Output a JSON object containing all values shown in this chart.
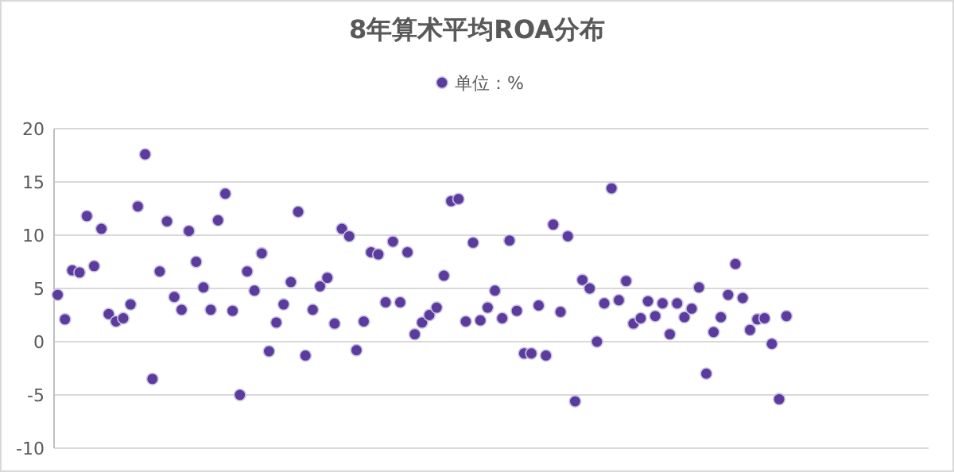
{
  "chart_data": {
    "type": "scatter",
    "title": "8年算术平均ROA分布",
    "legend": "top",
    "marker": "circle",
    "grid": "y",
    "ylim": [
      -10,
      20
    ],
    "yticks": [
      -10,
      -5,
      0,
      5,
      10,
      15,
      20
    ],
    "categories": [
      null,
      null,
      null,
      null,
      null,
      null,
      null,
      null,
      null,
      null,
      null,
      null,
      null,
      null,
      null,
      null,
      null,
      null,
      null,
      null,
      null,
      null,
      null,
      null,
      null,
      null,
      null,
      null,
      null,
      null,
      null,
      null,
      null,
      null,
      null,
      null,
      null,
      null,
      null,
      null,
      null,
      null,
      null,
      null,
      null,
      null,
      null,
      null,
      null,
      null,
      null,
      null,
      null,
      null,
      null,
      null,
      null,
      null,
      null,
      null,
      null,
      null,
      null,
      null,
      null,
      null,
      null,
      null,
      null,
      null,
      null,
      null,
      null,
      null,
      null,
      null,
      null,
      null,
      null,
      null,
      null,
      null,
      null,
      null,
      null,
      null,
      null,
      null,
      null,
      null,
      null,
      null,
      null,
      null,
      null,
      null,
      null,
      null,
      null,
      null,
      null,
      null,
      null,
      null,
      null,
      null,
      null,
      null,
      null,
      null,
      null,
      null,
      null,
      null,
      null,
      null,
      null,
      null,
      null,
      null
    ],
    "series": [
      {
        "name": "单位：%",
        "color": "#5b3c9c",
        "values": [
          4.4,
          2.1,
          6.7,
          6.5,
          11.8,
          7.1,
          10.6,
          2.6,
          1.9,
          2.2,
          3.5,
          12.7,
          17.6,
          -3.5,
          6.6,
          11.3,
          4.2,
          3.0,
          10.4,
          7.5,
          5.1,
          3.0,
          11.4,
          13.9,
          2.9,
          -5.0,
          6.6,
          4.8,
          8.3,
          -0.9,
          1.8,
          3.5,
          5.6,
          12.2,
          -1.3,
          3.0,
          5.2,
          6.0,
          1.7,
          10.6,
          9.9,
          -0.8,
          1.9,
          8.4,
          8.2,
          3.7,
          9.4,
          3.7,
          8.4,
          0.7,
          1.8,
          2.5,
          3.2,
          6.2,
          13.2,
          13.4,
          1.9,
          9.3,
          2.0,
          3.2,
          4.8,
          2.2,
          9.5,
          2.9,
          -1.1,
          -1.1,
          3.4,
          -1.3,
          11.0,
          2.8,
          9.9,
          -5.6,
          5.8,
          5.0,
          0.0,
          3.6,
          14.4,
          3.9,
          5.7,
          1.7,
          2.2,
          3.8,
          2.4,
          3.6,
          0.7,
          3.6,
          2.3,
          3.1,
          5.1,
          -3.0,
          0.9,
          2.3,
          4.4,
          7.3,
          4.1,
          1.1,
          2.1,
          2.2,
          -0.2,
          -5.4,
          2.4,
          null,
          null,
          null,
          null,
          null,
          null,
          null,
          null,
          null,
          null,
          null,
          null,
          null,
          null,
          null,
          null,
          null,
          null,
          null
        ]
      }
    ]
  }
}
